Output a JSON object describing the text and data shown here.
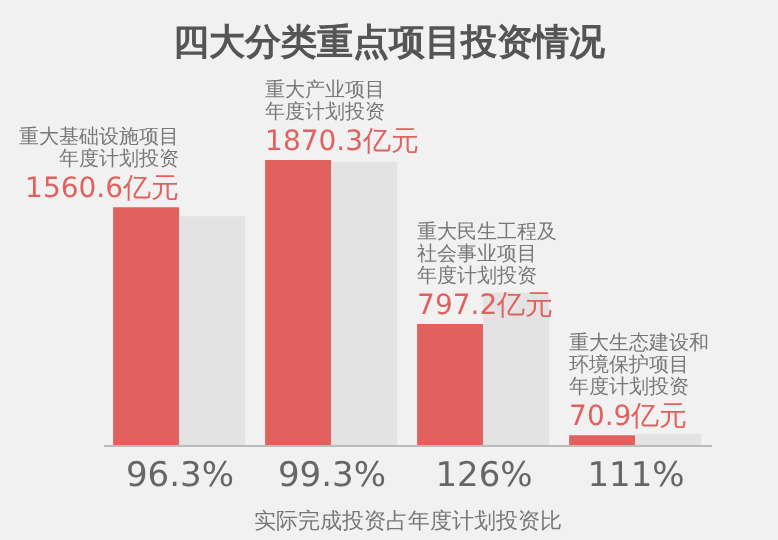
{
  "chart_data": {
    "type": "bar",
    "title": "四大分类重点项目投资情况",
    "xlabel": "实际完成投资占年度计划投资比",
    "categories": [
      "96.3%",
      "99.3%",
      "126%",
      "111%"
    ],
    "series": [
      {
        "color": "#e0615e",
        "values": [
          1560.6,
          1870.3,
          797.2,
          70.9
        ],
        "value_labels": [
          "1560.6亿元",
          "1870.3亿元",
          "797.2亿元",
          "70.9亿元"
        ]
      },
      {
        "color": "#e3e3e3",
        "values": [
          1502.9,
          1857.2,
          1004.5,
          78.7
        ]
      }
    ],
    "annotations": [
      {
        "text": "重大基础设施项目年度计划投资",
        "x": "96.3%",
        "y": 1560.6
      },
      {
        "text": "重大产业项目年度计划投资",
        "x": "99.3%",
        "y": 1870.3
      },
      {
        "text": "重大民生工程及社会事业项目年度计划投资",
        "x": "126%",
        "y": 797.2
      },
      {
        "text": "重大生态建设和环境保护项目年度计划投资",
        "x": "111%",
        "y": 70.9
      }
    ],
    "legend": false
  }
}
